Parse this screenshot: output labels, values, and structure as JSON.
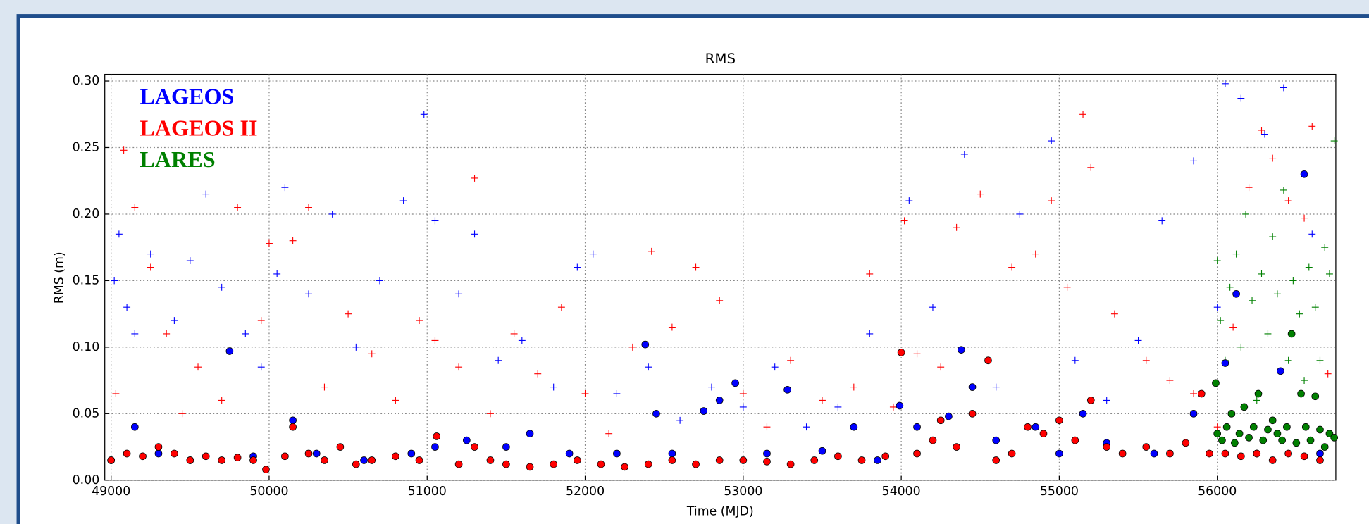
{
  "chart_data": {
    "type": "scatter",
    "title": "RMS",
    "xlabel": "Time (MJD)",
    "ylabel": "RMS (m)",
    "xlim": [
      48960,
      56750
    ],
    "ylim": [
      0,
      0.305
    ],
    "xticks": [
      49000,
      50000,
      51000,
      52000,
      53000,
      54000,
      55000,
      56000
    ],
    "yticks": [
      {
        "value": 0,
        "label": "0.00"
      },
      0.05,
      {
        "value": 0.1,
        "label": "0.10"
      },
      0.15,
      {
        "value": 0.2,
        "label": "0.20"
      },
      0.25,
      {
        "value": 0.3,
        "label": "0.30"
      }
    ],
    "grid": true,
    "legend": "upper left",
    "series": [
      {
        "name": "LAGEOS",
        "color": "#0000ff",
        "plus": {
          "x": [
            49020,
            49050,
            49100,
            49150,
            49250,
            49400,
            49500,
            49600,
            49700,
            49850,
            49950,
            50050,
            50100,
            50250,
            50400,
            50550,
            50700,
            50850,
            50980,
            51050,
            51200,
            51300,
            51450,
            51600,
            51800,
            51950,
            52050,
            52200,
            52400,
            52600,
            52800,
            53000,
            53200,
            53400,
            53600,
            53800,
            54050,
            54200,
            54400,
            54600,
            54750,
            54950,
            55100,
            55300,
            55500,
            55650,
            55850,
            56000,
            56050,
            56150,
            56300,
            56420,
            56600
          ],
          "values": [
            0.15,
            0.185,
            0.13,
            0.11,
            0.17,
            0.12,
            0.165,
            0.215,
            0.145,
            0.11,
            0.085,
            0.155,
            0.22,
            0.14,
            0.2,
            0.1,
            0.15,
            0.21,
            0.275,
            0.195,
            0.14,
            0.185,
            0.09,
            0.105,
            0.07,
            0.16,
            0.17,
            0.065,
            0.085,
            0.045,
            0.07,
            0.055,
            0.085,
            0.04,
            0.055,
            0.11,
            0.21,
            0.13,
            0.245,
            0.07,
            0.2,
            0.255,
            0.09,
            0.06,
            0.105,
            0.195,
            0.24,
            0.13,
            0.298,
            0.287,
            0.26,
            0.295,
            0.185
          ]
        },
        "dot": {
          "x": [
            49000,
            49150,
            49300,
            49500,
            49750,
            49900,
            50150,
            50300,
            50600,
            50900,
            51050,
            51250,
            51500,
            51650,
            51900,
            52200,
            52380,
            52450,
            52550,
            52750,
            52850,
            52950,
            53150,
            53280,
            53500,
            53700,
            53850,
            53990,
            54100,
            54300,
            54380,
            54450,
            54600,
            54850,
            55000,
            55150,
            55300,
            55600,
            55850,
            56050,
            56120,
            56250,
            56400,
            56550,
            56650
          ],
          "values": [
            0.015,
            0.04,
            0.02,
            0.015,
            0.097,
            0.018,
            0.045,
            0.02,
            0.015,
            0.02,
            0.025,
            0.03,
            0.025,
            0.035,
            0.02,
            0.02,
            0.102,
            0.05,
            0.02,
            0.052,
            0.06,
            0.073,
            0.02,
            0.068,
            0.022,
            0.04,
            0.015,
            0.056,
            0.04,
            0.048,
            0.098,
            0.07,
            0.03,
            0.04,
            0.02,
            0.05,
            0.028,
            0.02,
            0.05,
            0.088,
            0.14,
            0.02,
            0.082,
            0.23,
            0.02
          ]
        }
      },
      {
        "name": "LAGEOS II",
        "color": "#ff0000",
        "plus": {
          "x": [
            49030,
            49080,
            49150,
            49250,
            49350,
            49450,
            49550,
            49700,
            49800,
            49950,
            50000,
            50150,
            50250,
            50350,
            50500,
            50650,
            50800,
            50950,
            51050,
            51200,
            51300,
            51400,
            51550,
            51700,
            51850,
            52000,
            52150,
            52300,
            52420,
            52550,
            52700,
            52850,
            53000,
            53150,
            53300,
            53500,
            53700,
            53800,
            53950,
            54020,
            54100,
            54250,
            54350,
            54500,
            54700,
            54850,
            54950,
            55050,
            55150,
            55200,
            55350,
            55550,
            55700,
            55850,
            56000,
            56100,
            56200,
            56280,
            56350,
            56450,
            56550,
            56600,
            56700
          ],
          "values": [
            0.065,
            0.248,
            0.205,
            0.16,
            0.11,
            0.05,
            0.085,
            0.06,
            0.205,
            0.12,
            0.178,
            0.18,
            0.205,
            0.07,
            0.125,
            0.095,
            0.06,
            0.12,
            0.105,
            0.085,
            0.227,
            0.05,
            0.11,
            0.08,
            0.13,
            0.065,
            0.035,
            0.1,
            0.172,
            0.115,
            0.16,
            0.135,
            0.065,
            0.04,
            0.09,
            0.06,
            0.07,
            0.155,
            0.055,
            0.195,
            0.095,
            0.085,
            0.19,
            0.215,
            0.16,
            0.17,
            0.21,
            0.145,
            0.275,
            0.235,
            0.125,
            0.09,
            0.075,
            0.065,
            0.04,
            0.115,
            0.22,
            0.263,
            0.242,
            0.21,
            0.197,
            0.266,
            0.08
          ]
        },
        "dot": {
          "x": [
            49000,
            49100,
            49200,
            49300,
            49400,
            49500,
            49600,
            49700,
            49800,
            49900,
            49980,
            50100,
            50150,
            50250,
            50350,
            50450,
            50550,
            50650,
            50800,
            50950,
            51060,
            51200,
            51300,
            51400,
            51500,
            51650,
            51800,
            51950,
            52100,
            52250,
            52400,
            52550,
            52700,
            52850,
            53000,
            53150,
            53300,
            53450,
            53600,
            53750,
            53900,
            54000,
            54100,
            54200,
            54250,
            54350,
            54450,
            54550,
            54600,
            54700,
            54800,
            54900,
            55000,
            55100,
            55200,
            55300,
            55400,
            55550,
            55700,
            55800,
            55900,
            55950,
            56050,
            56150,
            56250,
            56350,
            56450,
            56550,
            56650
          ],
          "values": [
            0.015,
            0.02,
            0.018,
            0.025,
            0.02,
            0.015,
            0.018,
            0.015,
            0.017,
            0.015,
            0.008,
            0.018,
            0.04,
            0.02,
            0.015,
            0.025,
            0.012,
            0.015,
            0.018,
            0.015,
            0.033,
            0.012,
            0.025,
            0.015,
            0.012,
            0.01,
            0.012,
            0.015,
            0.012,
            0.01,
            0.012,
            0.015,
            0.012,
            0.015,
            0.015,
            0.014,
            0.012,
            0.015,
            0.018,
            0.015,
            0.018,
            0.096,
            0.02,
            0.03,
            0.045,
            0.025,
            0.05,
            0.09,
            0.015,
            0.02,
            0.04,
            0.035,
            0.045,
            0.03,
            0.06,
            0.025,
            0.02,
            0.025,
            0.02,
            0.028,
            0.065,
            0.02,
            0.02,
            0.018,
            0.02,
            0.015,
            0.02,
            0.018,
            0.015
          ]
        }
      },
      {
        "name": "LARES",
        "color": "#008000",
        "plus": {
          "x": [
            56000,
            56020,
            56050,
            56080,
            56120,
            56150,
            56180,
            56220,
            56250,
            56280,
            56320,
            56350,
            56380,
            56420,
            56450,
            56480,
            56520,
            56550,
            56580,
            56620,
            56650,
            56680,
            56710,
            56740
          ],
          "values": [
            0.165,
            0.12,
            0.09,
            0.145,
            0.17,
            0.1,
            0.2,
            0.135,
            0.06,
            0.155,
            0.11,
            0.183,
            0.14,
            0.218,
            0.09,
            0.15,
            0.125,
            0.075,
            0.16,
            0.13,
            0.09,
            0.175,
            0.155,
            0.255
          ]
        },
        "dot": {
          "x": [
            55990,
            56000,
            56030,
            56060,
            56090,
            56110,
            56140,
            56170,
            56200,
            56230,
            56260,
            56290,
            56320,
            56350,
            56380,
            56410,
            56440,
            56470,
            56500,
            56530,
            56560,
            56590,
            56620,
            56650,
            56680,
            56710,
            56740
          ],
          "values": [
            0.073,
            0.035,
            0.03,
            0.04,
            0.05,
            0.028,
            0.035,
            0.055,
            0.032,
            0.04,
            0.065,
            0.03,
            0.038,
            0.045,
            0.035,
            0.03,
            0.04,
            0.11,
            0.028,
            0.065,
            0.04,
            0.03,
            0.063,
            0.038,
            0.025,
            0.035,
            0.032
          ]
        }
      }
    ]
  }
}
